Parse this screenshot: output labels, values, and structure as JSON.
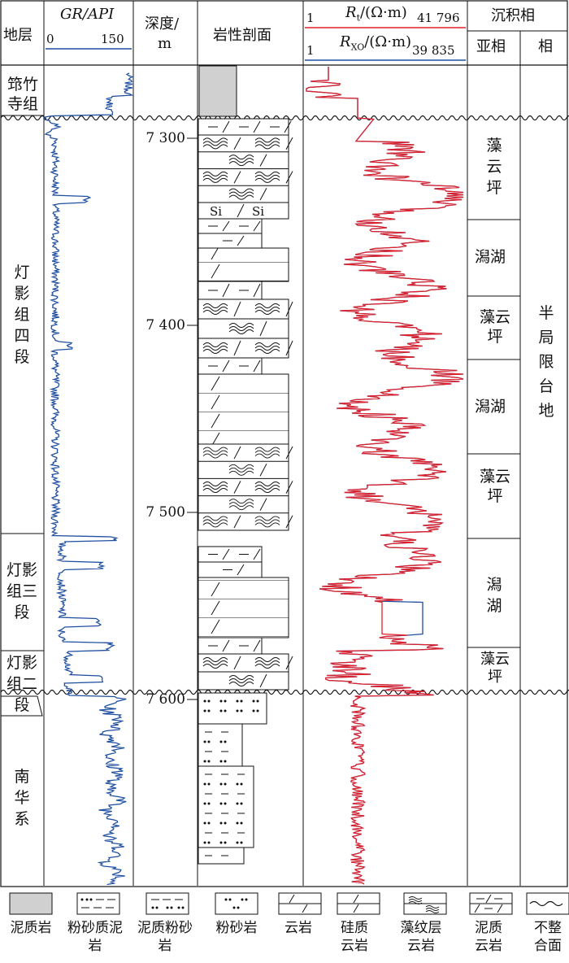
{
  "header": {
    "strata": "地层",
    "gr_title": "GR/API",
    "gr_min": "0",
    "gr_max": "150",
    "depth_title_1": "深度/",
    "depth_title_2": "m",
    "lith_title": "岩性剖面",
    "rt_min": "1",
    "rt_label": "Rt/(Ω·m)",
    "rt_max": "41 796",
    "rxo_min": "1",
    "rxo_label": "RXO/(Ω·m)",
    "rxo_max": "39 835",
    "facies_title": "沉积相",
    "subfacies_title": "亚相",
    "facies_sub_title": "相"
  },
  "strata": [
    {
      "name": "筇竹寺组"
    },
    {
      "name": "灯影组四段"
    },
    {
      "name": "灯影组三段"
    },
    {
      "name": "灯影组二段"
    },
    {
      "name": "南华系"
    }
  ],
  "depth_ticks": [
    "7 300",
    "7 400",
    "7 500",
    "7 600"
  ],
  "subfacies": [
    "藻云坪",
    "潟湖",
    "藻云坪",
    "潟湖",
    "藻云坪",
    "潟湖",
    "藻云坪"
  ],
  "facies": "半局限台地",
  "lith_marks": {
    "si": "Si"
  },
  "legend": [
    {
      "name": "泥质岩",
      "icon": "mudstone"
    },
    {
      "name": "粉砂质泥岩",
      "icon": "silty-mudstone"
    },
    {
      "name": "泥质粉砂岩",
      "icon": "argillaceous-siltstone"
    },
    {
      "name": "粉砂岩",
      "icon": "siltstone"
    },
    {
      "name": "云岩",
      "icon": "dolomite"
    },
    {
      "name": "硅质云岩",
      "icon": "siliceous-dolomite"
    },
    {
      "name": "藻纹层云岩",
      "icon": "algal-laminated-dolomite"
    },
    {
      "name": "泥质云岩",
      "icon": "argillaceous-dolomite"
    },
    {
      "name": "不整合面",
      "icon": "unconformity"
    }
  ],
  "colors": {
    "gr": "#1f4fa0",
    "rt": "#e0202a",
    "rxo": "#1f4fa0",
    "line": "#111111",
    "mud": "#d0d0d0"
  }
}
